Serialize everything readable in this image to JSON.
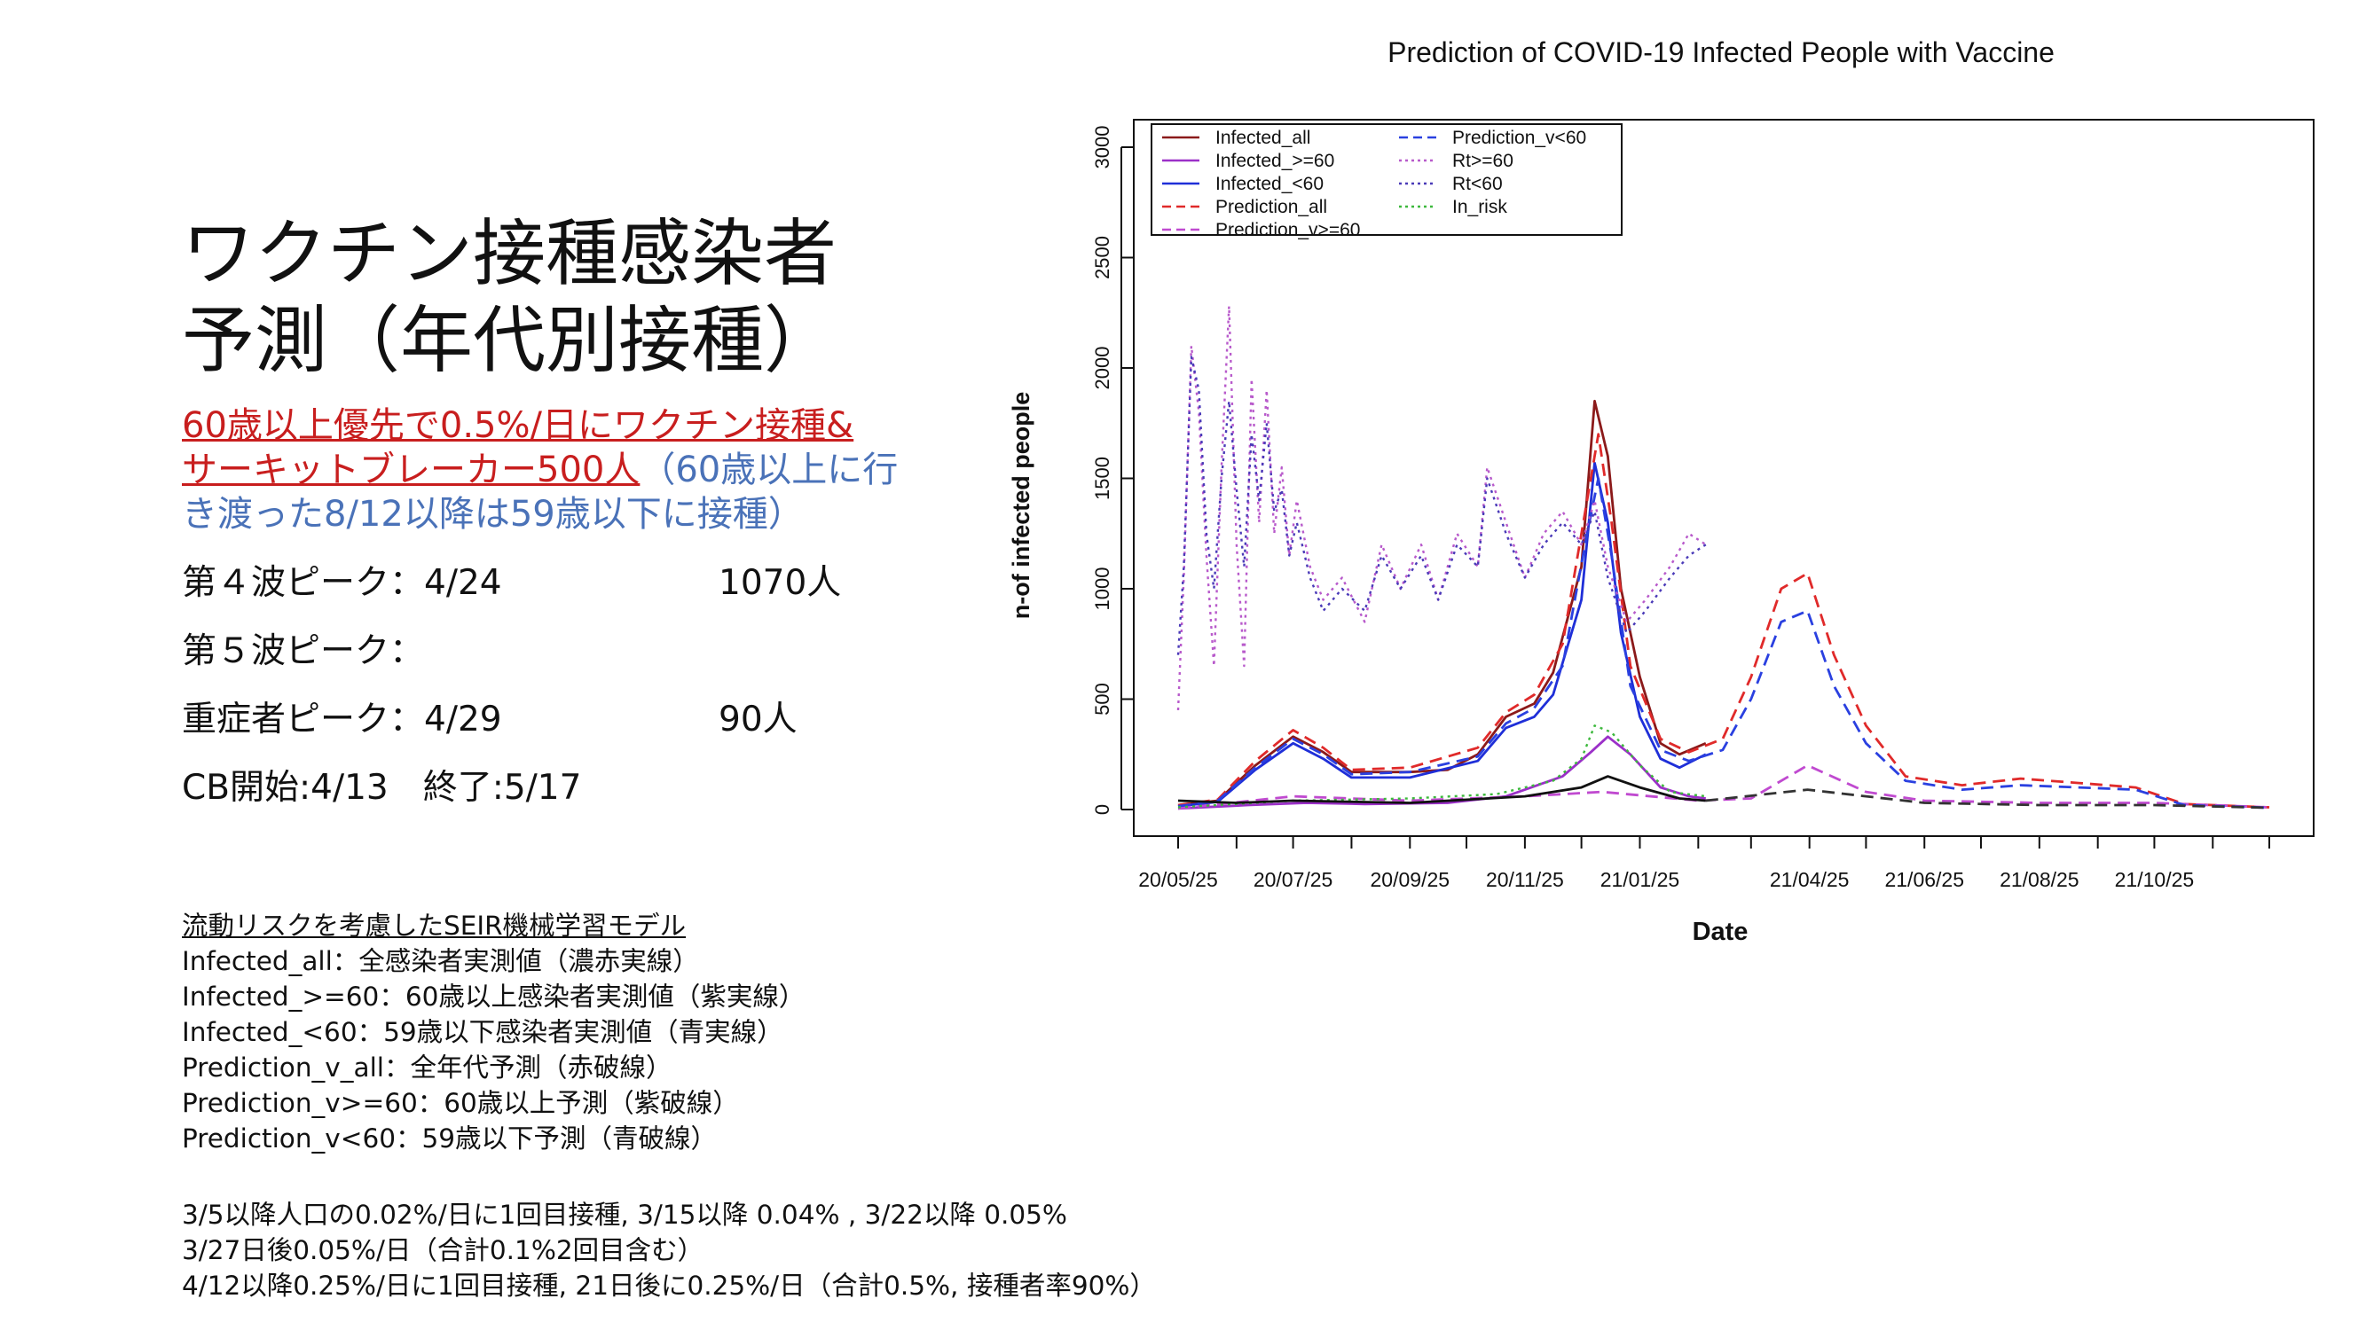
{
  "slide": {
    "title_line1": "ワクチン接種感染者",
    "title_line2": "予測（年代別接種）",
    "headline_red_1": "60歳以上優先で0.5%/日にワクチン接種&",
    "headline_red_2": "サーキットブレーカー500人",
    "headline_blue_2": "（60歳以上に行",
    "headline_blue_3": "き渡った8/12以降は59歳以下に接種）",
    "stats": [
      {
        "label": "第４波ピーク：4/24",
        "value": "1070人"
      },
      {
        "label": "第５波ピーク：",
        "value": ""
      },
      {
        "label": "重症者ピーク：4/29",
        "value": "90人"
      },
      {
        "label": "CB開始:4/13　終了:5/17",
        "value": ""
      }
    ],
    "model_title": "流動リスクを考慮したSEIR機械学習モデル",
    "model_lines": [
      "Infected_all：全感染者実測値（濃赤実線）",
      "Infected_>=60：60歳以上感染者実測値（紫実線）",
      "Infected_<60：59歳以下感染者実測値（青実線）",
      "Prediction_v_all：全年代予測（赤破線）",
      "Prediction_v>=60：60歳以上予測（紫破線）",
      "Prediction_v<60：59歳以下予測（青破線）"
    ],
    "notes": [
      "3/5以降人口の0.02%/日に1回目接種, 3/15以降 0.04% , 3/22以降 0.05%",
      "3/27日後0.05%/日（合計0.1%2回目含む）",
      "4/12以降0.25%/日に1回目接種, 21日後に0.25%/日（合計0.5%, 接種者率90%）"
    ]
  },
  "chart_data": {
    "type": "line",
    "title": "Prediction of COVID-19 Infected People with Vaccine",
    "xlabel": "Date",
    "ylabel": "n-of infected people",
    "ylim": [
      0,
      3000
    ],
    "yticks": [
      0,
      500,
      1000,
      1500,
      2000,
      2500,
      3000
    ],
    "xlim": [
      "2020-05-25",
      "2021-12-25"
    ],
    "xtick_labels": [
      "20/05/25",
      "20/07/25",
      "20/09/25",
      "20/11/25",
      "21/01/25",
      "21/04/25",
      "21/06/25",
      "21/08/25",
      "21/10/25"
    ],
    "xtick_dates": [
      "2020-05-25",
      "2020-07-25",
      "2020-09-25",
      "2020-11-25",
      "2021-01-25",
      "2021-04-25",
      "2021-06-25",
      "2021-08-25",
      "2021-10-25"
    ],
    "grid": false,
    "legend_position": "top-left",
    "series": [
      {
        "name": "Infected_all",
        "color": "#8b1a1a",
        "dash": "solid",
        "points": [
          [
            "2020-05-25",
            20
          ],
          [
            "2020-06-15",
            40
          ],
          [
            "2020-07-05",
            200
          ],
          [
            "2020-07-25",
            330
          ],
          [
            "2020-08-10",
            260
          ],
          [
            "2020-08-25",
            170
          ],
          [
            "2020-09-10",
            170
          ],
          [
            "2020-09-25",
            170
          ],
          [
            "2020-10-15",
            180
          ],
          [
            "2020-10-31",
            250
          ],
          [
            "2020-11-15",
            420
          ],
          [
            "2020-11-30",
            480
          ],
          [
            "2020-12-10",
            620
          ],
          [
            "2020-12-25",
            1100
          ],
          [
            "2021-01-01",
            1850
          ],
          [
            "2021-01-08",
            1600
          ],
          [
            "2021-01-15",
            1000
          ],
          [
            "2021-01-25",
            600
          ],
          [
            "2021-02-05",
            300
          ],
          [
            "2021-02-15",
            250
          ],
          [
            "2021-03-01",
            300
          ]
        ]
      },
      {
        "name": "Infected_>=60",
        "color": "#9b30c8",
        "dash": "solid",
        "points": [
          [
            "2020-05-25",
            5
          ],
          [
            "2020-07-01",
            20
          ],
          [
            "2020-08-01",
            30
          ],
          [
            "2020-09-01",
            25
          ],
          [
            "2020-10-15",
            30
          ],
          [
            "2020-11-15",
            60
          ],
          [
            "2020-12-15",
            150
          ],
          [
            "2020-12-30",
            260
          ],
          [
            "2021-01-08",
            330
          ],
          [
            "2021-01-20",
            250
          ],
          [
            "2021-02-05",
            100
          ],
          [
            "2021-02-20",
            60
          ],
          [
            "2021-03-01",
            50
          ]
        ]
      },
      {
        "name": "Infected_<60",
        "color": "#1f2fd8",
        "dash": "solid",
        "points": [
          [
            "2020-05-25",
            15
          ],
          [
            "2020-06-15",
            35
          ],
          [
            "2020-07-05",
            180
          ],
          [
            "2020-07-25",
            300
          ],
          [
            "2020-08-10",
            230
          ],
          [
            "2020-08-25",
            145
          ],
          [
            "2020-09-25",
            145
          ],
          [
            "2020-10-31",
            220
          ],
          [
            "2020-11-15",
            370
          ],
          [
            "2020-11-30",
            420
          ],
          [
            "2020-12-10",
            520
          ],
          [
            "2020-12-25",
            950
          ],
          [
            "2021-01-01",
            1570
          ],
          [
            "2021-01-08",
            1300
          ],
          [
            "2021-01-15",
            800
          ],
          [
            "2021-01-25",
            420
          ],
          [
            "2021-02-05",
            230
          ],
          [
            "2021-02-15",
            190
          ],
          [
            "2021-03-01",
            250
          ]
        ]
      },
      {
        "name": "Prediction_all",
        "color": "#e02a2a",
        "dash": "dash",
        "points": [
          [
            "2020-05-25",
            20
          ],
          [
            "2020-06-15",
            45
          ],
          [
            "2020-07-05",
            220
          ],
          [
            "2020-07-25",
            360
          ],
          [
            "2020-08-10",
            280
          ],
          [
            "2020-08-25",
            180
          ],
          [
            "2020-09-25",
            190
          ],
          [
            "2020-10-31",
            280
          ],
          [
            "2020-11-15",
            440
          ],
          [
            "2020-11-30",
            520
          ],
          [
            "2020-12-15",
            750
          ],
          [
            "2020-12-28",
            1400
          ],
          [
            "2021-01-03",
            1700
          ],
          [
            "2021-01-10",
            1300
          ],
          [
            "2021-01-20",
            650
          ],
          [
            "2021-02-05",
            320
          ],
          [
            "2021-02-20",
            260
          ],
          [
            "2021-03-10",
            320
          ],
          [
            "2021-03-25",
            600
          ],
          [
            "2021-04-10",
            1000
          ],
          [
            "2021-04-24",
            1070
          ],
          [
            "2021-05-08",
            700
          ],
          [
            "2021-05-25",
            380
          ],
          [
            "2021-06-15",
            150
          ],
          [
            "2021-07-15",
            110
          ],
          [
            "2021-08-15",
            140
          ],
          [
            "2021-09-15",
            120
          ],
          [
            "2021-10-15",
            100
          ],
          [
            "2021-11-10",
            25
          ],
          [
            "2021-12-25",
            10
          ]
        ]
      },
      {
        "name": "Prediction_v>=60",
        "color": "#c04ad0",
        "dash": "dash",
        "points": [
          [
            "2020-05-25",
            5
          ],
          [
            "2020-07-25",
            60
          ],
          [
            "2020-09-25",
            40
          ],
          [
            "2020-11-25",
            60
          ],
          [
            "2021-01-05",
            80
          ],
          [
            "2021-02-25",
            40
          ],
          [
            "2021-03-25",
            50
          ],
          [
            "2021-04-24",
            200
          ],
          [
            "2021-05-25",
            80
          ],
          [
            "2021-06-25",
            40
          ],
          [
            "2021-08-25",
            30
          ],
          [
            "2021-10-25",
            30
          ],
          [
            "2021-12-25",
            10
          ]
        ]
      },
      {
        "name": "Prediction_v<60",
        "color": "#2a40e0",
        "dash": "dash",
        "points": [
          [
            "2020-05-25",
            15
          ],
          [
            "2020-06-15",
            40
          ],
          [
            "2020-07-05",
            190
          ],
          [
            "2020-07-25",
            320
          ],
          [
            "2020-08-10",
            250
          ],
          [
            "2020-08-25",
            160
          ],
          [
            "2020-09-25",
            170
          ],
          [
            "2020-10-31",
            240
          ],
          [
            "2020-11-15",
            390
          ],
          [
            "2020-11-30",
            460
          ],
          [
            "2020-12-15",
            650
          ],
          [
            "2020-12-28",
            1250
          ],
          [
            "2021-01-03",
            1500
          ],
          [
            "2021-01-10",
            1150
          ],
          [
            "2021-01-20",
            560
          ],
          [
            "2021-02-05",
            270
          ],
          [
            "2021-02-20",
            220
          ],
          [
            "2021-03-10",
            270
          ],
          [
            "2021-03-25",
            500
          ],
          [
            "2021-04-10",
            850
          ],
          [
            "2021-04-24",
            900
          ],
          [
            "2021-05-08",
            560
          ],
          [
            "2021-05-25",
            300
          ],
          [
            "2021-06-15",
            130
          ],
          [
            "2021-07-15",
            90
          ],
          [
            "2021-08-15",
            110
          ],
          [
            "2021-09-15",
            100
          ],
          [
            "2021-10-15",
            90
          ],
          [
            "2021-11-10",
            20
          ],
          [
            "2021-12-25",
            8
          ]
        ]
      },
      {
        "name": "Rt>=60",
        "color": "#b85acb",
        "dash": "dot",
        "points": [
          [
            "2020-05-25",
            450
          ],
          [
            "2020-05-28",
            1050
          ],
          [
            "2020-06-01",
            2100
          ],
          [
            "2020-06-05",
            1800
          ],
          [
            "2020-06-09",
            1150
          ],
          [
            "2020-06-13",
            650
          ],
          [
            "2020-06-17",
            1550
          ],
          [
            "2020-06-21",
            2280
          ],
          [
            "2020-06-25",
            1200
          ],
          [
            "2020-06-29",
            650
          ],
          [
            "2020-07-03",
            1950
          ],
          [
            "2020-07-07",
            1300
          ],
          [
            "2020-07-11",
            1900
          ],
          [
            "2020-07-15",
            1250
          ],
          [
            "2020-07-19",
            1550
          ],
          [
            "2020-07-23",
            1150
          ],
          [
            "2020-07-27",
            1400
          ],
          [
            "2020-08-03",
            1100
          ],
          [
            "2020-08-10",
            950
          ],
          [
            "2020-08-20",
            1050
          ],
          [
            "2020-09-01",
            850
          ],
          [
            "2020-09-10",
            1200
          ],
          [
            "2020-09-20",
            1000
          ],
          [
            "2020-10-01",
            1200
          ],
          [
            "2020-10-10",
            950
          ],
          [
            "2020-10-20",
            1250
          ],
          [
            "2020-10-31",
            1100
          ],
          [
            "2020-11-05",
            1550
          ],
          [
            "2020-11-15",
            1300
          ],
          [
            "2020-11-25",
            1050
          ],
          [
            "2020-12-05",
            1250
          ],
          [
            "2020-12-15",
            1350
          ],
          [
            "2020-12-25",
            1200
          ],
          [
            "2021-01-01",
            1400
          ],
          [
            "2021-01-08",
            1100
          ],
          [
            "2021-01-18",
            850
          ],
          [
            "2021-01-28",
            950
          ],
          [
            "2021-02-10",
            1100
          ],
          [
            "2021-02-20",
            1250
          ],
          [
            "2021-03-01",
            1200
          ]
        ]
      },
      {
        "name": "Rt<60",
        "color": "#4a3ab8",
        "dash": "dot",
        "points": [
          [
            "2020-05-25",
            700
          ],
          [
            "2020-05-28",
            1100
          ],
          [
            "2020-06-01",
            2050
          ],
          [
            "2020-06-05",
            1900
          ],
          [
            "2020-06-09",
            1250
          ],
          [
            "2020-06-13",
            1000
          ],
          [
            "2020-06-17",
            1500
          ],
          [
            "2020-06-21",
            1850
          ],
          [
            "2020-06-25",
            1450
          ],
          [
            "2020-06-29",
            1100
          ],
          [
            "2020-07-03",
            1700
          ],
          [
            "2020-07-07",
            1400
          ],
          [
            "2020-07-11",
            1750
          ],
          [
            "2020-07-15",
            1350
          ],
          [
            "2020-07-19",
            1450
          ],
          [
            "2020-07-23",
            1150
          ],
          [
            "2020-07-27",
            1300
          ],
          [
            "2020-08-03",
            1050
          ],
          [
            "2020-08-10",
            900
          ],
          [
            "2020-08-20",
            1000
          ],
          [
            "2020-09-01",
            900
          ],
          [
            "2020-09-10",
            1150
          ],
          [
            "2020-09-20",
            1000
          ],
          [
            "2020-10-01",
            1150
          ],
          [
            "2020-10-10",
            950
          ],
          [
            "2020-10-20",
            1200
          ],
          [
            "2020-10-31",
            1100
          ],
          [
            "2020-11-05",
            1500
          ],
          [
            "2020-11-15",
            1250
          ],
          [
            "2020-11-25",
            1050
          ],
          [
            "2020-12-05",
            1200
          ],
          [
            "2020-12-15",
            1300
          ],
          [
            "2020-12-25",
            1200
          ],
          [
            "2021-01-01",
            1350
          ],
          [
            "2021-01-08",
            1050
          ],
          [
            "2021-01-18",
            800
          ],
          [
            "2021-01-28",
            900
          ],
          [
            "2021-02-10",
            1050
          ],
          [
            "2021-02-20",
            1150
          ],
          [
            "2021-03-01",
            1200
          ]
        ]
      },
      {
        "name": "In_risk",
        "color": "#3cb83c",
        "dash": "dot",
        "points": [
          [
            "2020-05-25",
            10
          ],
          [
            "2020-07-25",
            40
          ],
          [
            "2020-09-25",
            50
          ],
          [
            "2020-11-10",
            70
          ],
          [
            "2020-12-10",
            130
          ],
          [
            "2020-12-25",
            230
          ],
          [
            "2021-01-01",
            380
          ],
          [
            "2021-01-10",
            350
          ],
          [
            "2021-01-25",
            200
          ],
          [
            "2021-02-10",
            80
          ],
          [
            "2021-03-01",
            60
          ]
        ]
      },
      {
        "name": "",
        "color": "#111111",
        "dash": "solid",
        "points": [
          [
            "2020-05-25",
            40
          ],
          [
            "2020-06-25",
            30
          ],
          [
            "2020-07-25",
            40
          ],
          [
            "2020-09-25",
            30
          ],
          [
            "2020-11-25",
            60
          ],
          [
            "2020-12-25",
            100
          ],
          [
            "2021-01-08",
            150
          ],
          [
            "2021-01-25",
            100
          ],
          [
            "2021-02-15",
            50
          ],
          [
            "2021-03-01",
            40
          ]
        ]
      },
      {
        "name": "",
        "color": "#333333",
        "dash": "dash",
        "points": [
          [
            "2021-03-01",
            40
          ],
          [
            "2021-04-24",
            90
          ],
          [
            "2021-05-25",
            60
          ],
          [
            "2021-06-25",
            30
          ],
          [
            "2021-08-25",
            20
          ],
          [
            "2021-10-25",
            20
          ],
          [
            "2021-12-25",
            8
          ]
        ]
      }
    ]
  }
}
